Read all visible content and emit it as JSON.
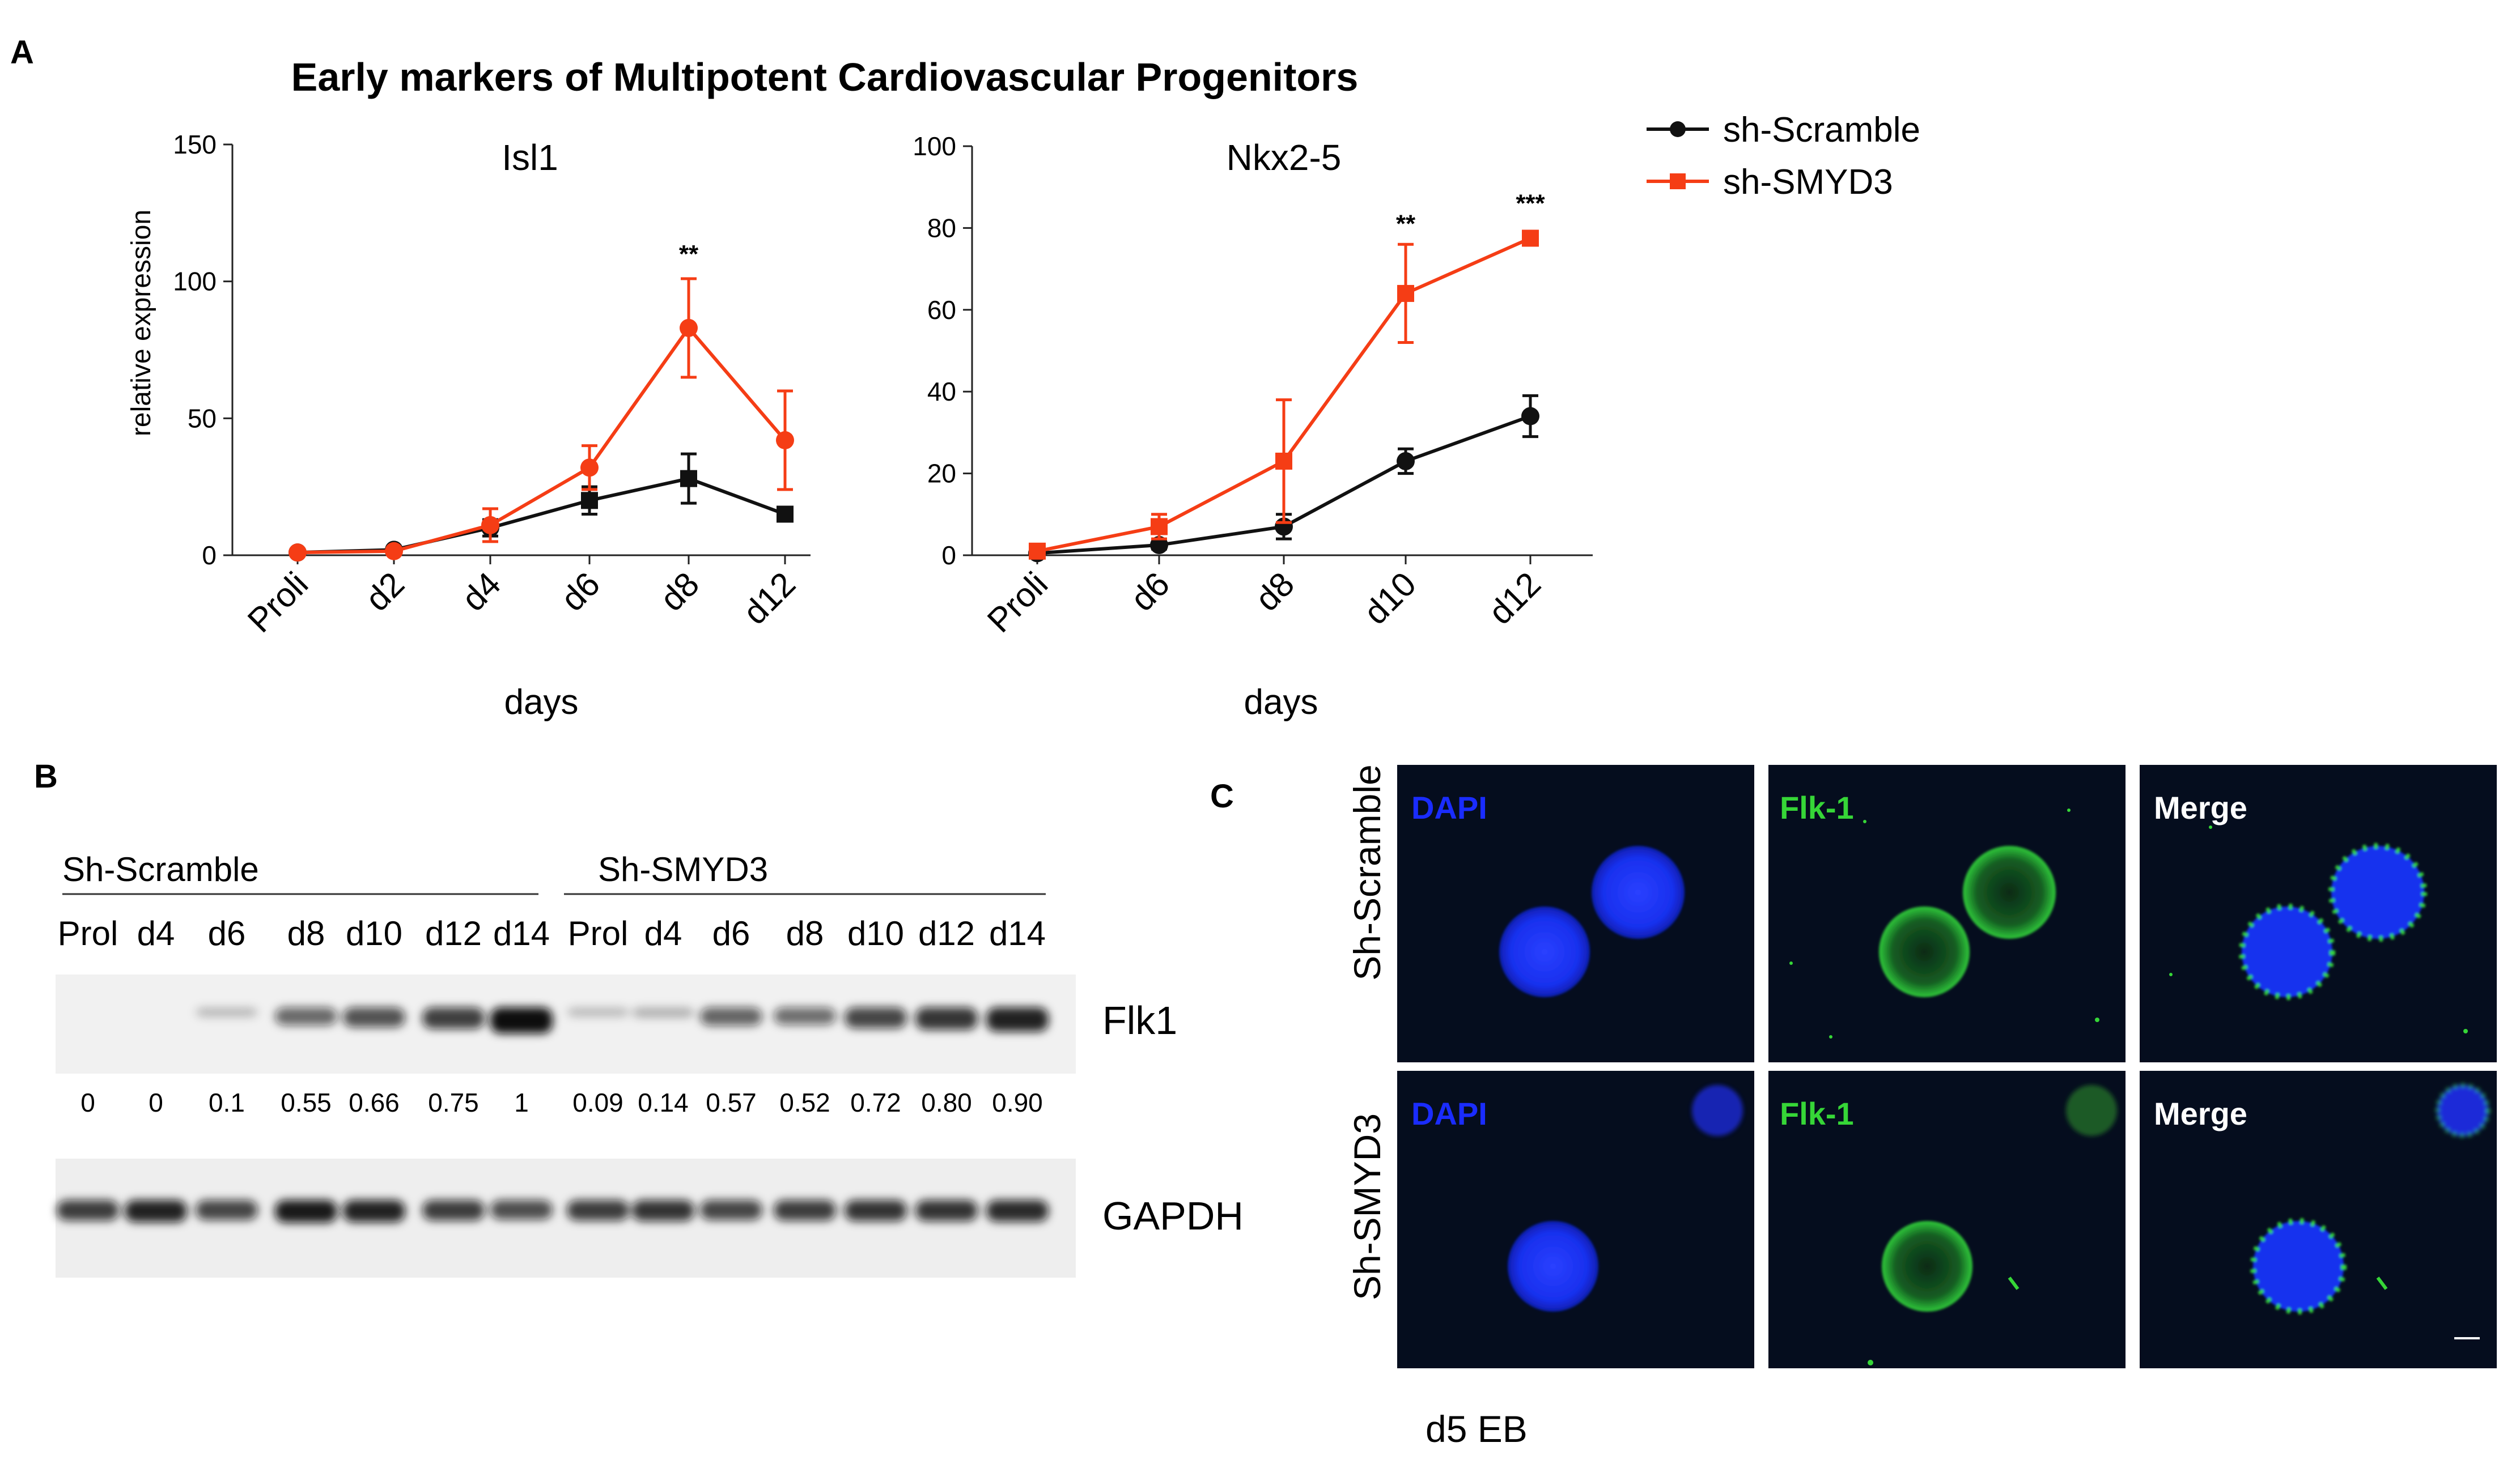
{
  "panel_letters": {
    "a": "A",
    "b": "B",
    "c": "C"
  },
  "figure_title": "Early markers of Multipotent Cardiovascular Progenitors",
  "colors": {
    "scramble": "#111111",
    "smyd3": "#f53d15",
    "axis": "#222222",
    "dapi": "#1a2cff",
    "flk": "#36d637",
    "if_bg": "#050d1e"
  },
  "legend": [
    {
      "label": "sh-Scramble",
      "color": "#111111",
      "marker": "circle"
    },
    {
      "label": "sh-SMYD3",
      "color": "#f53d15",
      "marker": "square"
    }
  ],
  "chart_data": [
    {
      "type": "line",
      "title": "Isl1",
      "xlabel": "days",
      "ylabel": "relative expression",
      "categories": [
        "Proli",
        "d2",
        "d4",
        "d6",
        "d8",
        "d12"
      ],
      "ylim": [
        0,
        150
      ],
      "yticks": [
        0,
        50,
        100,
        150
      ],
      "series": [
        {
          "name": "sh-Scramble",
          "color": "#111111",
          "values": [
            1,
            2,
            10,
            20,
            28,
            15
          ],
          "errors": [
            1,
            1,
            3,
            5,
            9,
            1
          ],
          "markers": [
            "circle",
            "circle",
            "circle",
            "square",
            "square",
            "square"
          ]
        },
        {
          "name": "sh-SMYD3",
          "color": "#f53d15",
          "values": [
            1,
            1.5,
            11,
            32,
            83,
            42
          ],
          "errors": [
            1,
            1,
            6,
            8,
            18,
            18
          ],
          "markers": [
            "circle",
            "circle",
            "circle",
            "circle",
            "circle",
            "circle"
          ]
        }
      ],
      "annotations": [
        {
          "category": "d8",
          "text": "**",
          "y": 107
        }
      ]
    },
    {
      "type": "line",
      "title": "Nkx2-5",
      "xlabel": "days",
      "ylabel": "",
      "categories": [
        "Proli",
        "d6",
        "d8",
        "d10",
        "d12"
      ],
      "ylim": [
        0,
        100
      ],
      "yticks": [
        0,
        20,
        40,
        60,
        80,
        100
      ],
      "series": [
        {
          "name": "sh-Scramble",
          "color": "#111111",
          "values": [
            0.5,
            2.5,
            7,
            23,
            34
          ],
          "errors": [
            0.5,
            1,
            3,
            3,
            5
          ],
          "markers": [
            "circle",
            "circle",
            "circle",
            "circle",
            "circle"
          ]
        },
        {
          "name": "sh-SMYD3",
          "color": "#f53d15",
          "values": [
            1,
            7,
            23,
            64,
            77.5
          ],
          "errors": [
            1,
            3,
            15,
            12,
            1
          ],
          "markers": [
            "square",
            "square",
            "square",
            "square",
            "square"
          ]
        }
      ],
      "annotations": [
        {
          "category": "d10",
          "text": "**",
          "y": 79
        },
        {
          "category": "d12",
          "text": "***",
          "y": 84
        }
      ]
    }
  ],
  "western_blot": {
    "groups": [
      "Sh-Scramble",
      "Sh-SMYD3"
    ],
    "lanes": [
      "Prol",
      "d4",
      "d6",
      "d8",
      "d10",
      "d12",
      "d14",
      "Prol",
      "d4",
      "d6",
      "d8",
      "d10",
      "d12",
      "d14"
    ],
    "proteins": [
      "Flk1",
      "GAPDH"
    ],
    "quantification": [
      "0",
      "0",
      "0.1",
      "0.55",
      "0.66",
      "0.75",
      "1",
      "0.09",
      "0.14",
      "0.57",
      "0.52",
      "0.72",
      "0.80",
      "0.90"
    ],
    "flk1_intensity": [
      0,
      0,
      0.1,
      0.55,
      0.66,
      0.75,
      1,
      0.09,
      0.14,
      0.57,
      0.52,
      0.72,
      0.8,
      0.9
    ],
    "gapdh_intensity": [
      0.8,
      0.95,
      0.75,
      1,
      0.95,
      0.8,
      0.7,
      0.8,
      0.85,
      0.75,
      0.8,
      0.85,
      0.85,
      0.9
    ]
  },
  "immunofluorescence": {
    "rows": [
      "Sh-Scramble",
      "Sh-SMYD3"
    ],
    "channels": [
      "DAPI",
      "Flk-1",
      "Merge"
    ],
    "caption": "d5 EB"
  }
}
